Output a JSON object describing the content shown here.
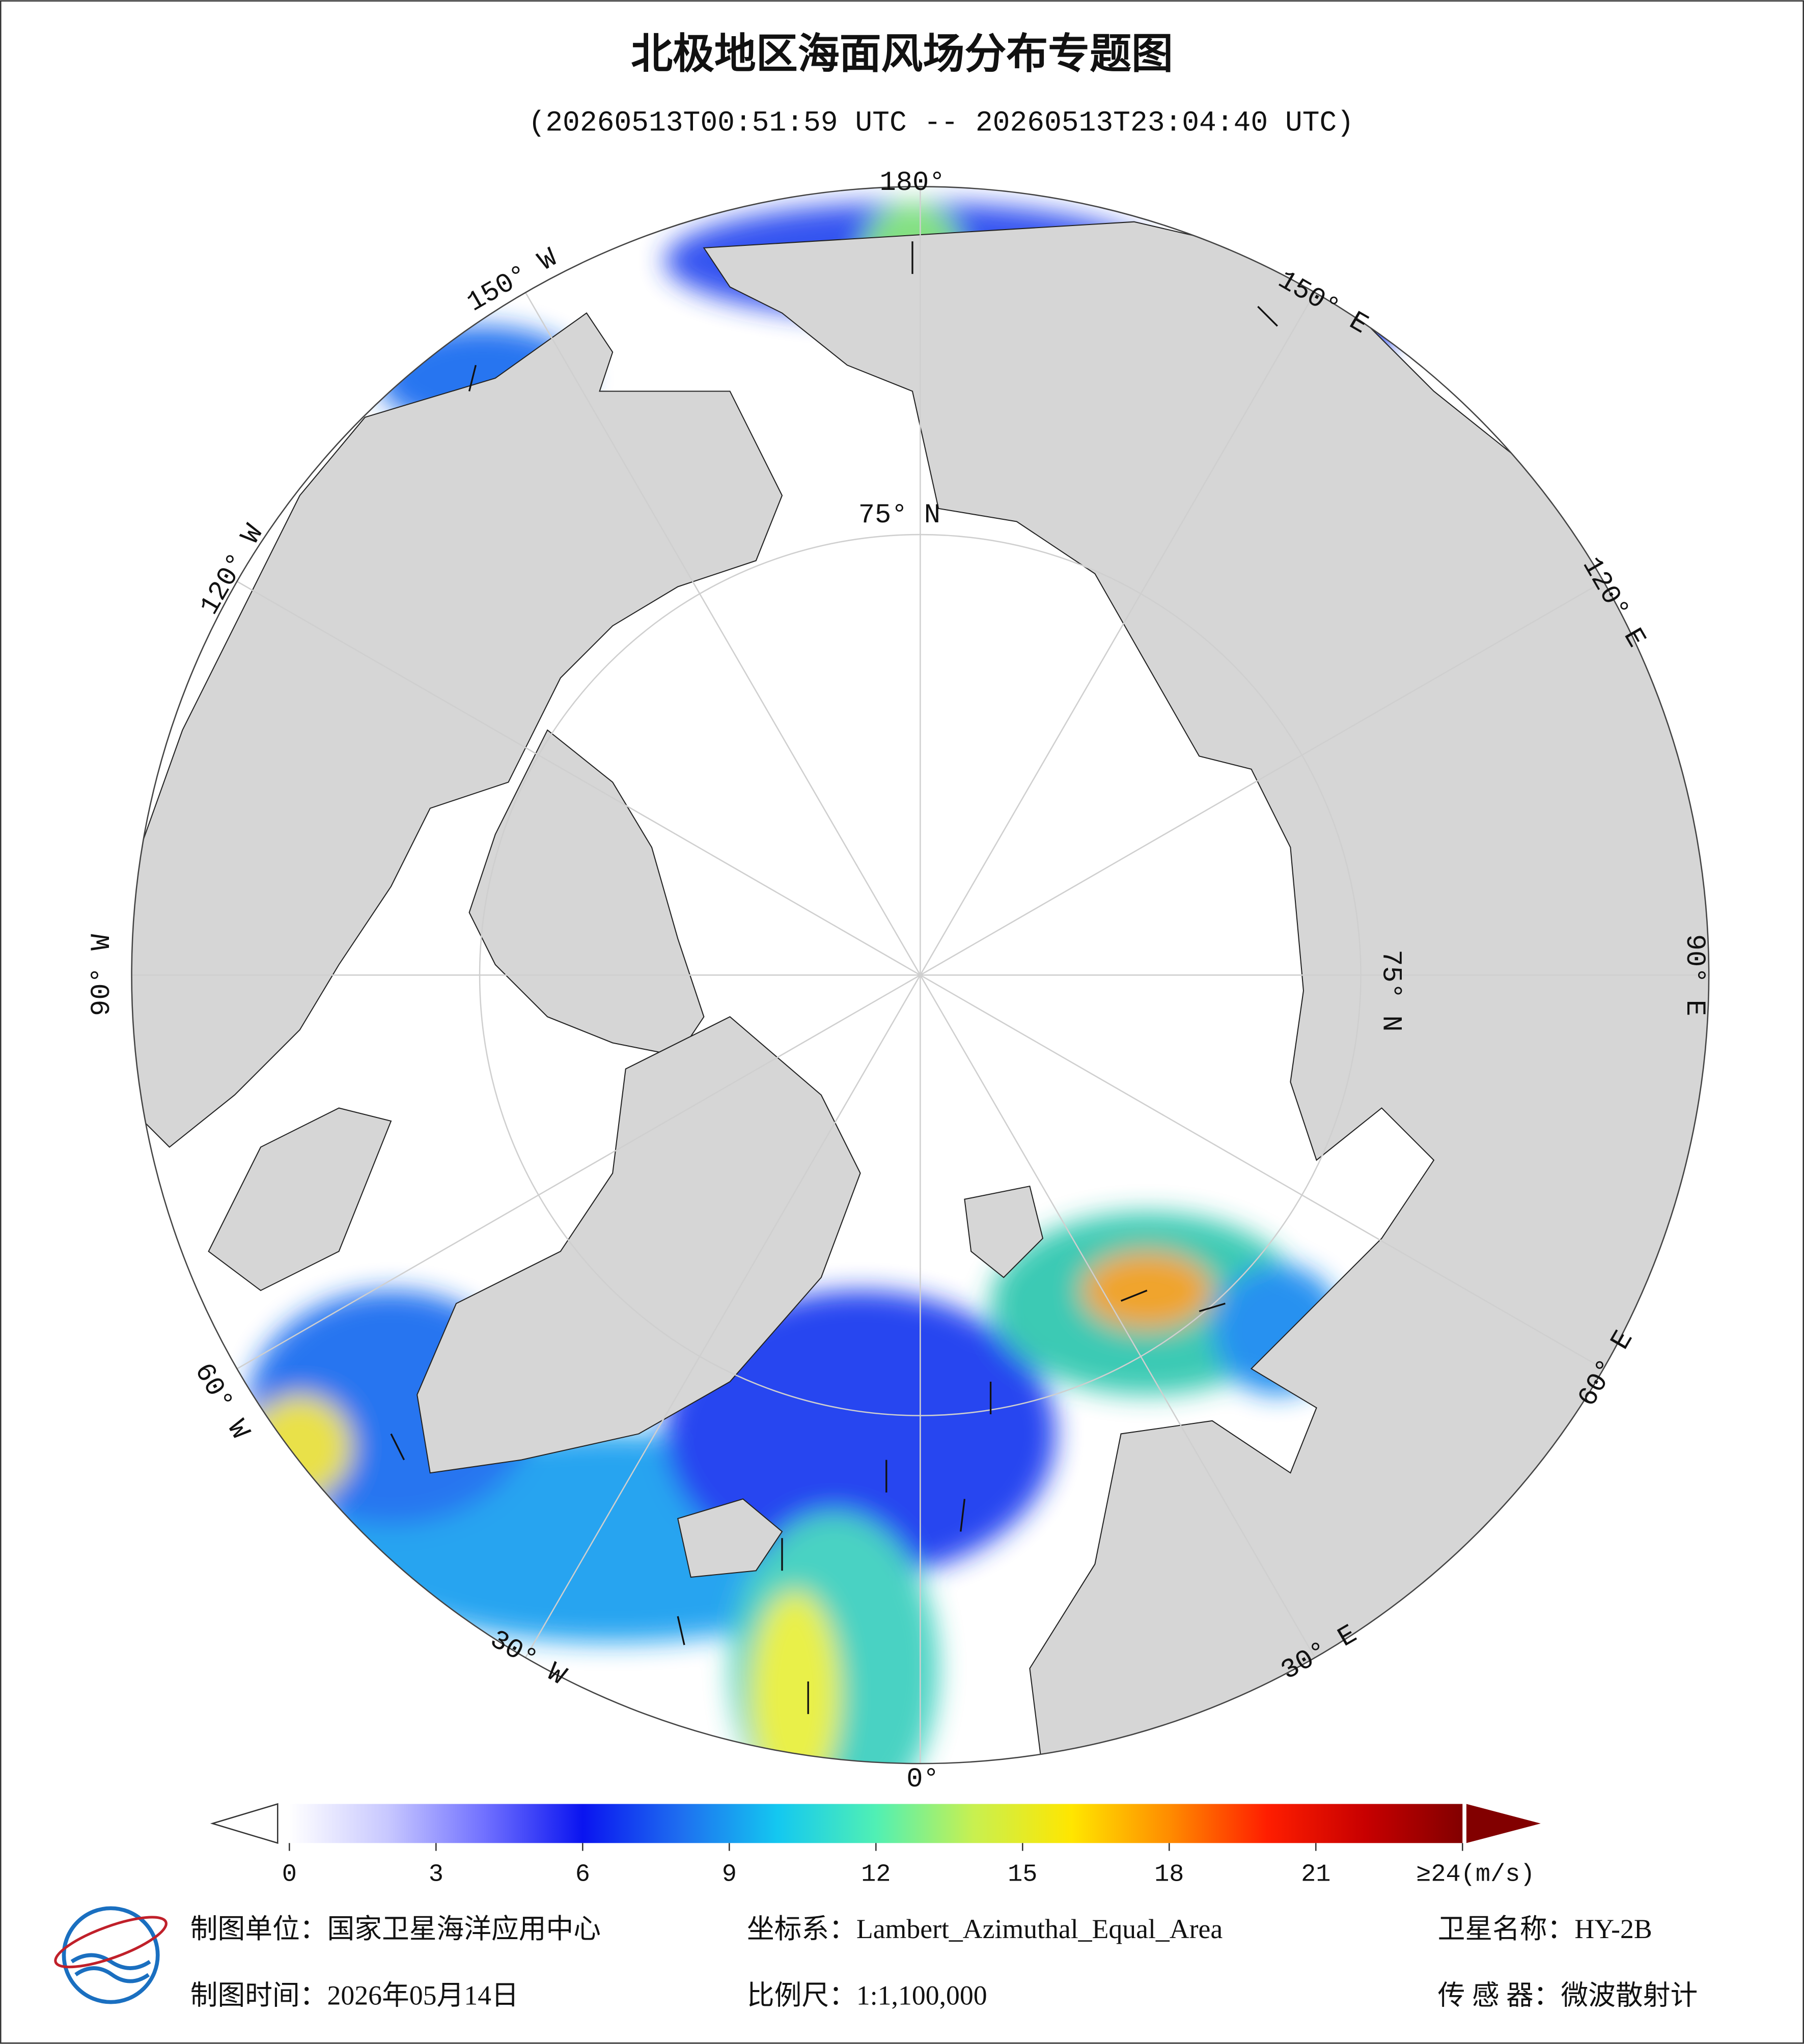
{
  "title": "北极地区海面风场分布专题图",
  "subtitle": "(20260513T00:51:59 UTC -- 20260513T23:04:40 UTC)",
  "graticule": {
    "longitudes": [
      "180°",
      "150° E",
      "120° E",
      "90° E",
      "60° E",
      "30° E",
      "0°",
      "30° W",
      "60° W",
      "90° W",
      "120° W",
      "150° W"
    ],
    "latitude_labels": [
      "75° N",
      "75° N"
    ]
  },
  "colorbar": {
    "ticks": [
      0,
      3,
      6,
      9,
      12,
      15,
      18,
      21,
      {
        "value": 24,
        "label": "≥24(m/s)"
      }
    ],
    "range": [
      0,
      24
    ],
    "colors": [
      "#ffffff",
      "#c8c8ff",
      "#7070ff",
      "#0a14f0",
      "#1e6ef0",
      "#14c8f0",
      "#50f0b4",
      "#c8f050",
      "#ffe600",
      "#ff8c00",
      "#ff1e00",
      "#c80000",
      "#820000"
    ]
  },
  "footer": {
    "unit": "制图单位：国家卫星海洋应用中心",
    "projection": "坐标系：Lambert_Azimuthal_Equal_Area",
    "satellite": "卫星名称：HY-2B",
    "date": "制图时间：2026年05月14日",
    "scale": "比例尺：1:1,100,000",
    "sensor": "传 感 器：微波散射计"
  }
}
